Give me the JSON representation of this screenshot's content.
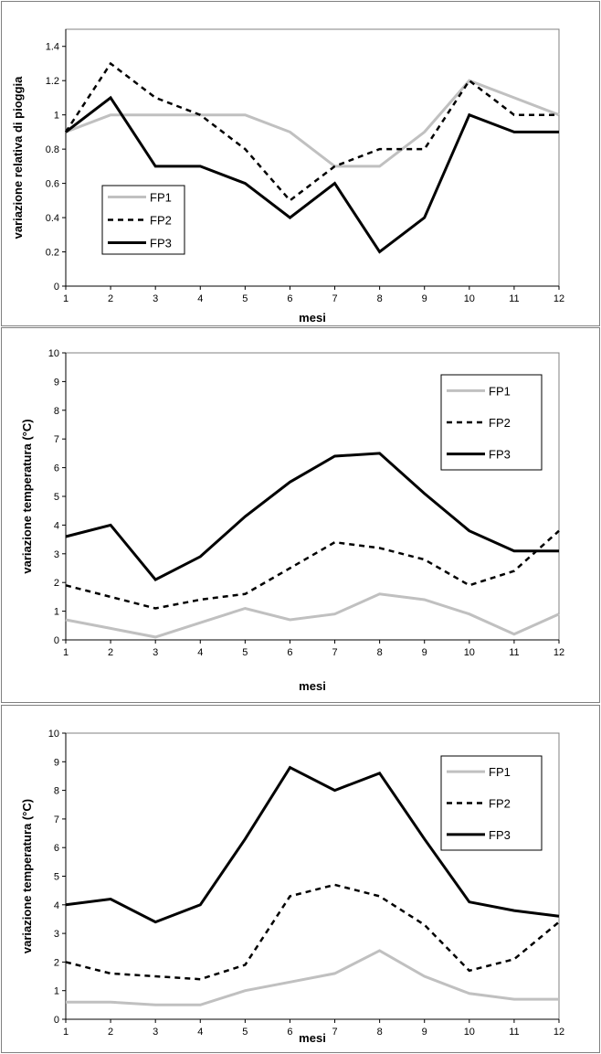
{
  "styles": {
    "FP1": {
      "color": "#c0c0c0",
      "width": 3,
      "dash": ""
    },
    "FP2": {
      "color": "#000000",
      "width": 2.5,
      "dash": "6,5"
    },
    "FP3": {
      "color": "#000000",
      "width": 3,
      "dash": ""
    }
  },
  "chart_data": [
    {
      "type": "line",
      "title": "",
      "xlabel": "mesi",
      "ylabel": "variazione relativa di pioggia",
      "x": [
        1,
        2,
        3,
        4,
        5,
        6,
        7,
        8,
        9,
        10,
        11,
        12
      ],
      "xlim": [
        1,
        12
      ],
      "ylim": [
        0,
        1.5
      ],
      "yticks": [
        0,
        0.2,
        0.4,
        0.6,
        0.8,
        1,
        1.2,
        1.4
      ],
      "ytick_labels": [
        "0",
        "0.2",
        "0.4",
        "0.6",
        "0.8",
        "1",
        "1.2",
        "1.4"
      ],
      "grid": false,
      "legend_position": "bottom-left",
      "series": [
        {
          "name": "FP1",
          "values": [
            0.9,
            1.0,
            1.0,
            1.0,
            1.0,
            0.9,
            0.7,
            0.7,
            0.9,
            1.2,
            1.1,
            1.0
          ]
        },
        {
          "name": "FP2",
          "values": [
            0.9,
            1.3,
            1.1,
            1.0,
            0.8,
            0.5,
            0.7,
            0.8,
            0.8,
            1.2,
            1.0,
            1.0
          ]
        },
        {
          "name": "FP3",
          "values": [
            0.9,
            1.1,
            0.7,
            0.7,
            0.6,
            0.4,
            0.6,
            0.2,
            0.4,
            1.0,
            0.9,
            0.9
          ]
        }
      ]
    },
    {
      "type": "line",
      "title": "",
      "xlabel": "mesi",
      "ylabel": "variazione temperatura (°C)",
      "x": [
        1,
        2,
        3,
        4,
        5,
        6,
        7,
        8,
        9,
        10,
        11,
        12
      ],
      "xlim": [
        1,
        12
      ],
      "ylim": [
        0,
        10
      ],
      "yticks": [
        0,
        1,
        2,
        3,
        4,
        5,
        6,
        7,
        8,
        9,
        10
      ],
      "ytick_labels": [
        "0",
        "1",
        "2",
        "3",
        "4",
        "5",
        "6",
        "7",
        "8",
        "9",
        "10"
      ],
      "grid": false,
      "legend_position": "top-right",
      "series": [
        {
          "name": "FP1",
          "values": [
            0.7,
            0.4,
            0.1,
            0.6,
            1.1,
            0.7,
            0.9,
            1.6,
            1.4,
            0.9,
            0.2,
            0.9
          ]
        },
        {
          "name": "FP2",
          "values": [
            1.9,
            1.5,
            1.1,
            1.4,
            1.6,
            2.5,
            3.4,
            3.2,
            2.8,
            1.9,
            2.4,
            3.8
          ]
        },
        {
          "name": "FP3",
          "values": [
            3.6,
            4.0,
            2.1,
            2.9,
            4.3,
            5.5,
            6.4,
            6.5,
            5.1,
            3.8,
            3.1,
            3.1
          ]
        }
      ]
    },
    {
      "type": "line",
      "title": "",
      "xlabel": "mesi",
      "ylabel": "variazione temperatura (°C)",
      "x": [
        1,
        2,
        3,
        4,
        5,
        6,
        7,
        8,
        9,
        10,
        11,
        12
      ],
      "xlim": [
        1,
        12
      ],
      "ylim": [
        0,
        10
      ],
      "yticks": [
        0,
        1,
        2,
        3,
        4,
        5,
        6,
        7,
        8,
        9,
        10
      ],
      "ytick_labels": [
        "0",
        "1",
        "2",
        "3",
        "4",
        "5",
        "6",
        "7",
        "8",
        "9",
        "10"
      ],
      "grid": false,
      "legend_position": "top-right",
      "series": [
        {
          "name": "FP1",
          "values": [
            0.6,
            0.6,
            0.5,
            0.5,
            1.0,
            1.3,
            1.6,
            2.4,
            1.5,
            0.9,
            0.7,
            0.7
          ]
        },
        {
          "name": "FP2",
          "values": [
            2.0,
            1.6,
            1.5,
            1.4,
            1.9,
            4.3,
            4.7,
            4.3,
            3.3,
            1.7,
            2.1,
            3.4
          ]
        },
        {
          "name": "FP3",
          "values": [
            4.0,
            4.2,
            3.4,
            4.0,
            6.3,
            8.8,
            8.0,
            8.6,
            6.3,
            4.1,
            3.8,
            3.6
          ]
        }
      ]
    }
  ]
}
